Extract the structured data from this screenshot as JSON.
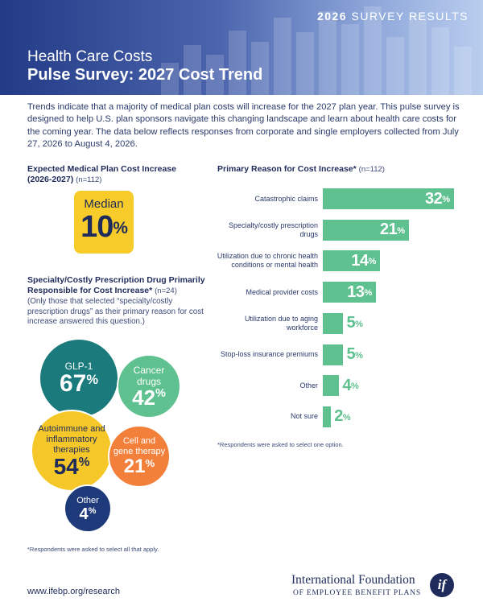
{
  "header": {
    "survey_year": "2026",
    "survey_label": "SURVEY RESULTS",
    "title_line1": "Health Care Costs",
    "title_line2": "Pulse Survey: 2027 Cost Trend"
  },
  "intro": "Trends indicate that a majority of medical plan costs will increase for the 2027 plan year. This pulse survey is designed to help U.S. plan sponsors navigate this changing landscape and learn about health care costs for the coming year. The data below reflects responses from corporate and single employers collected from July 27, 2026 to August 4, 2026.",
  "expected": {
    "title": "Expected Medical Plan Cost Increase (2026-2027)",
    "n": "(n=112)",
    "median_label": "Median",
    "median_value": "10",
    "pct": "%"
  },
  "specialty": {
    "title": "Specialty/Costly Prescription Drug Primarily Responsible for Cost Increase*",
    "n": "(n=24)",
    "note": "(Only those that selected “specialty/costly prescription drugs” as their primary reason for cost increase answered this question.)",
    "items": [
      {
        "label": "GLP-1",
        "value": "67",
        "pct": "%"
      },
      {
        "label": "Cancer drugs",
        "value": "42",
        "pct": "%"
      },
      {
        "label": "Autoimmune and inflammatory therapies",
        "value": "54",
        "pct": "%"
      },
      {
        "label": "Cell and gene therapy",
        "value": "21",
        "pct": "%"
      },
      {
        "label": "Other",
        "value": "4",
        "pct": "%"
      }
    ],
    "footnote": "*Respondents were asked to select all that apply."
  },
  "reasons": {
    "title": "Primary Reason for Cost Increase*",
    "n": "(n=112)",
    "footnote": "*Respondents were asked to select one option.",
    "color": "#5ec18f"
  },
  "chart_data": {
    "type": "bar",
    "orientation": "horizontal",
    "categories": [
      "Catastrophic claims",
      "Specialty/costly prescription drugs",
      "Utilization due to chronic health conditions or mental health",
      "Medical provider costs",
      "Utilization due to aging workforce",
      "Stop-loss insurance premiums",
      "Other",
      "Not sure"
    ],
    "values": [
      32,
      21,
      14,
      13,
      5,
      5,
      4,
      2
    ],
    "unit": "%",
    "xlim": [
      0,
      32
    ]
  },
  "footer": {
    "url": "www.ifebp.org/research",
    "logo_line1": "International Foundation",
    "logo_line2": "OF EMPLOYEE BENEFIT PLANS",
    "logo_mark": "if"
  }
}
